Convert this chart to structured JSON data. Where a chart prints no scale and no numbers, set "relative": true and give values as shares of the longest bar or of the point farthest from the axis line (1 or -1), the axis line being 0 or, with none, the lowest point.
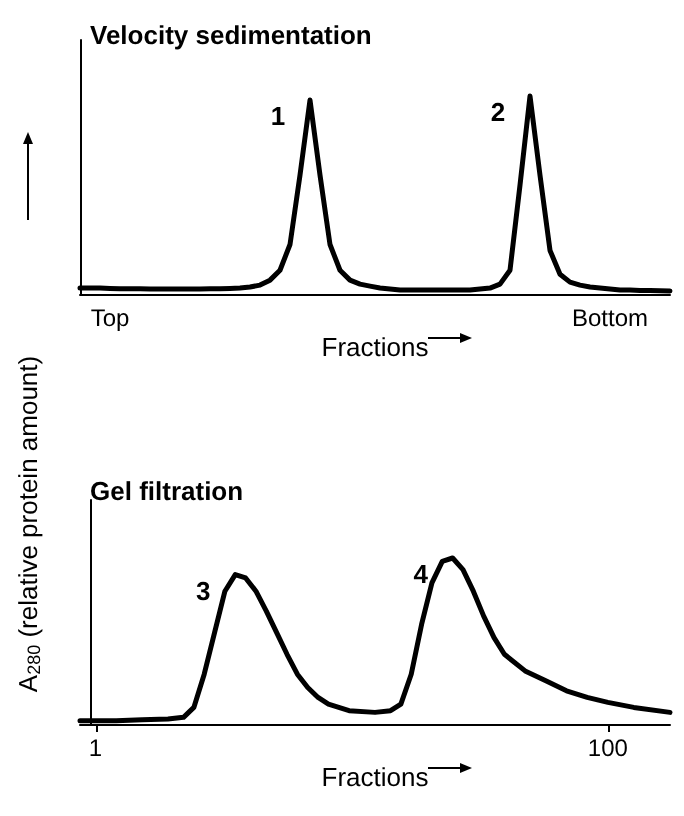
{
  "chart_data": [
    {
      "type": "line",
      "title": "Velocity sedimentation",
      "xlabel": "Fractions",
      "ylabel": "A$_{280}$ (relative protein amount)",
      "relative": true,
      "color": "#000000",
      "categories": [
        null,
        null,
        null,
        "Top",
        null,
        null,
        null,
        null,
        null,
        null,
        null,
        null,
        null,
        null,
        null,
        null,
        null,
        null,
        null,
        null,
        null,
        null,
        null,
        null,
        null,
        null,
        null,
        null,
        null,
        null,
        null,
        null,
        null,
        null,
        null,
        null,
        null,
        null,
        null,
        null,
        null,
        null,
        null,
        null,
        null,
        null,
        null,
        null,
        null,
        null,
        null,
        null,
        null,
        "Bottom",
        null,
        null,
        null,
        null,
        null,
        null
      ],
      "values": [
        0.03,
        0.03,
        0.03,
        0.028,
        0.027,
        0.026,
        0.026,
        0.025,
        0.025,
        0.025,
        0.025,
        0.025,
        0.025,
        0.026,
        0.027,
        0.028,
        0.03,
        0.035,
        0.045,
        0.07,
        0.12,
        0.25,
        0.6,
        0.98,
        0.6,
        0.25,
        0.12,
        0.07,
        0.05,
        0.04,
        0.03,
        0.025,
        0.02,
        0.02,
        0.02,
        0.02,
        0.02,
        0.02,
        0.02,
        0.02,
        0.025,
        0.03,
        0.05,
        0.12,
        0.55,
        1.0,
        0.6,
        0.22,
        0.1,
        0.06,
        0.045,
        0.035,
        0.03,
        0.025,
        0.02,
        0.02,
        0.018,
        0.018,
        0.016,
        0.015
      ],
      "annotations": [
        "1",
        "2"
      ]
    },
    {
      "type": "line",
      "title": "Gel filtration",
      "xlabel": "Fractions",
      "relative": true,
      "color": "#000000",
      "xlim": [
        -2,
        112
      ],
      "xticks": [
        1,
        100
      ],
      "x": [
        -2,
        5,
        10,
        15,
        18,
        20,
        22,
        24,
        26,
        28,
        30,
        32,
        34,
        36,
        38,
        40,
        42,
        44,
        46,
        50,
        55,
        58,
        60,
        62,
        64,
        66,
        68,
        70,
        72,
        74,
        76,
        78,
        80,
        84,
        88,
        92,
        96,
        100,
        105,
        112
      ],
      "values": [
        0.02,
        0.02,
        0.025,
        0.03,
        0.04,
        0.1,
        0.3,
        0.55,
        0.8,
        0.9,
        0.88,
        0.8,
        0.68,
        0.55,
        0.42,
        0.3,
        0.22,
        0.16,
        0.12,
        0.08,
        0.07,
        0.08,
        0.12,
        0.3,
        0.6,
        0.85,
        0.98,
        1.0,
        0.93,
        0.8,
        0.65,
        0.52,
        0.42,
        0.32,
        0.26,
        0.2,
        0.16,
        0.13,
        0.1,
        0.07
      ],
      "annotations": [
        "3",
        "4"
      ]
    }
  ]
}
